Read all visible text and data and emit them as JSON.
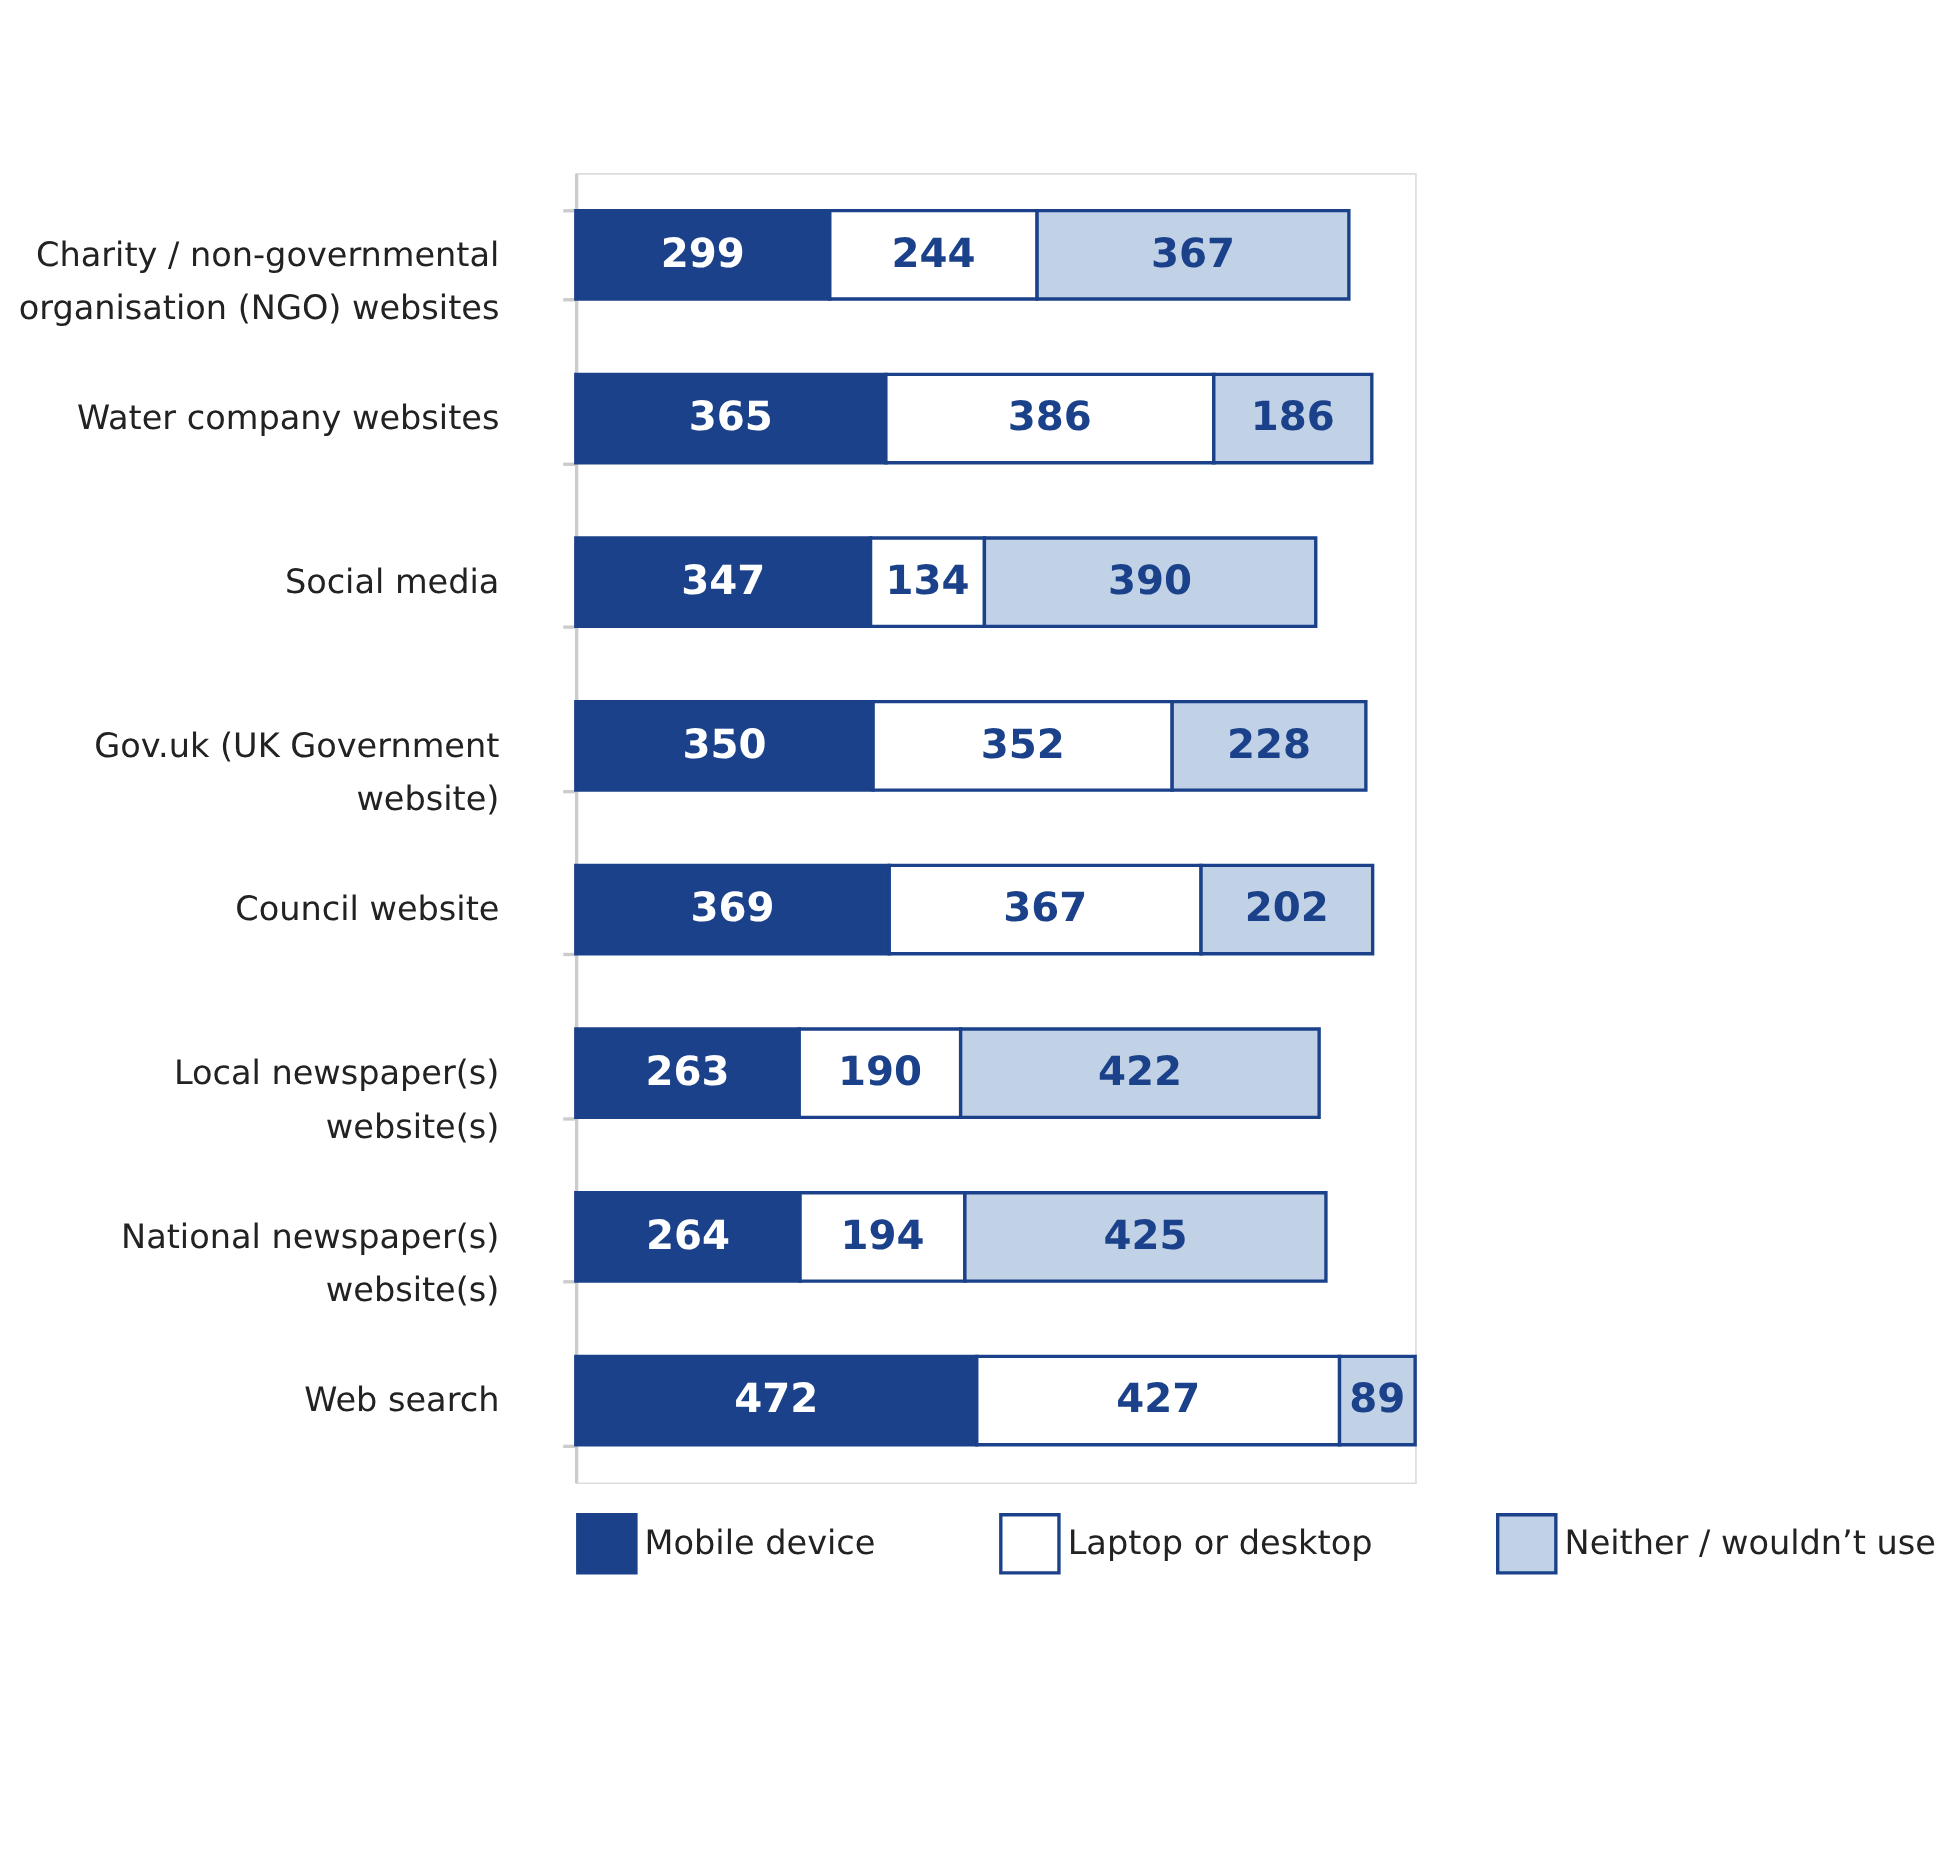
{
  "chart_data": {
    "type": "bar",
    "orientation": "horizontal",
    "stacked": true,
    "data_labels": true,
    "legend": "bottom",
    "categories": [
      "Charity / non-governmental\norganisation (NGO) websites",
      "Water company websites",
      "Social media",
      "Gov.uk (UK Government\nwebsite)",
      "Council website",
      "Local newspaper(s)\nwebsite(s)",
      "National newspaper(s)\nwebsite(s)",
      "Web search"
    ],
    "series": [
      {
        "name": "Mobile device",
        "color": "#1a4189",
        "values": [
          299,
          365,
          347,
          350,
          369,
          263,
          264,
          472
        ]
      },
      {
        "name": "Laptop or desktop",
        "color": "#ffffff",
        "values": [
          244,
          386,
          134,
          352,
          367,
          190,
          194,
          427
        ]
      },
      {
        "name": "Neither / wouldn’t use",
        "color": "#c1d1e6",
        "values": [
          367,
          186,
          390,
          228,
          202,
          422,
          425,
          89
        ]
      }
    ]
  }
}
